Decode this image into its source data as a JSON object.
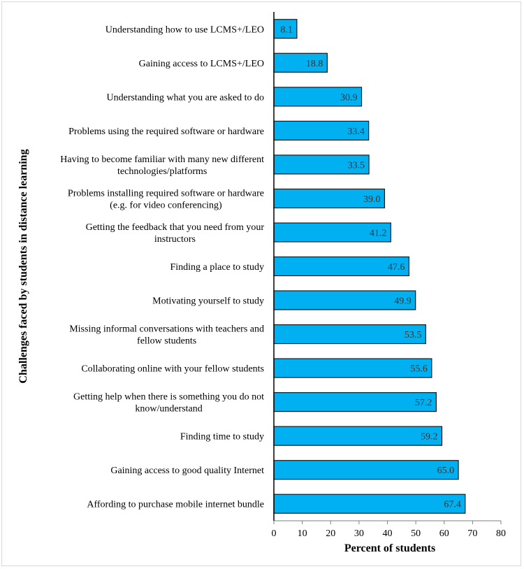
{
  "chart_data": {
    "type": "bar",
    "orientation": "horizontal",
    "title": "",
    "xlabel": "Percent of students",
    "ylabel": "Challenges faced by students in distance learning",
    "xlim": [
      0,
      80
    ],
    "xticks": [
      0,
      10,
      20,
      30,
      40,
      50,
      60,
      70,
      80
    ],
    "grid": false,
    "legend": null,
    "bar_color": "#00B0F0",
    "bar_edge_color": "#1a1a1a",
    "categories": [
      [
        "Understanding how to use LCMS+/LEO"
      ],
      [
        "Gaining access to LCMS+/LEO"
      ],
      [
        "Understanding what you are asked to do"
      ],
      [
        "Problems using the required software or hardware"
      ],
      [
        "Having to become familiar with many new different",
        "technologies/platforms"
      ],
      [
        "Problems installing required software or hardware",
        "(e.g. for video conferencing)"
      ],
      [
        "Getting the feedback that you need from your",
        "instructors"
      ],
      [
        "Finding a place to study"
      ],
      [
        "Motivating yourself to study"
      ],
      [
        "Missing informal conversations with teachers and",
        "fellow students"
      ],
      [
        "Collaborating online with your fellow students"
      ],
      [
        "Getting help when there is something you do not",
        "know/understand"
      ],
      [
        "Finding time to study"
      ],
      [
        "Gaining access to good quality Internet"
      ],
      [
        "Affording to purchase mobile internet bundle"
      ]
    ],
    "values": [
      8.1,
      18.8,
      30.9,
      33.4,
      33.5,
      39.0,
      41.2,
      47.6,
      49.9,
      53.5,
      55.6,
      57.2,
      59.2,
      65.0,
      67.4
    ],
    "value_labels": [
      "8.1",
      "18.8",
      "30.9",
      "33.4",
      "33.5",
      "39.0",
      "41.2",
      "47.6",
      "49.9",
      "53.5",
      "55.6",
      "57.2",
      "59.2",
      "65.0",
      "67.4"
    ]
  }
}
